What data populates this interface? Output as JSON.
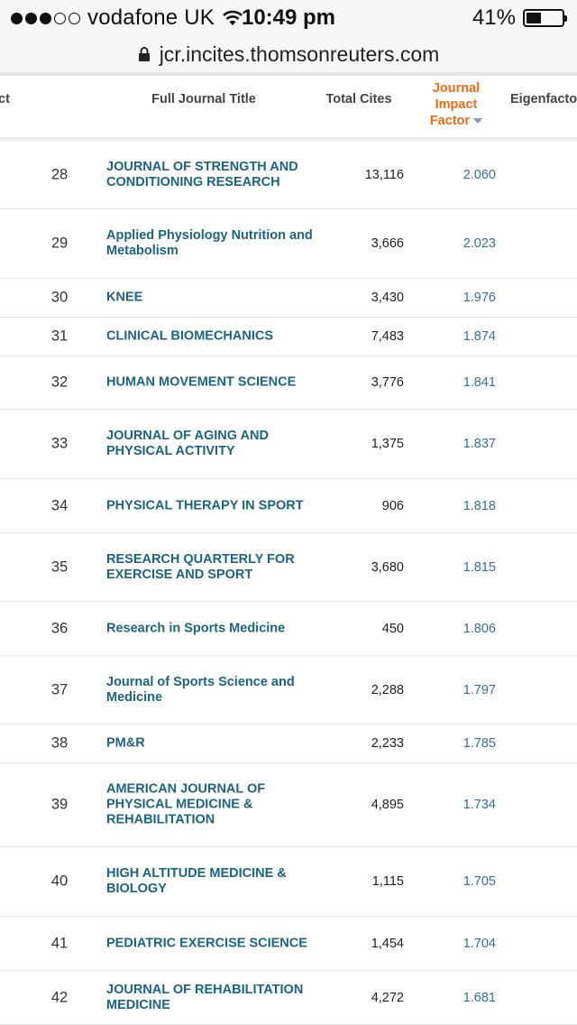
{
  "status_bar": {
    "carrier": "vodafone UK",
    "time": "10:49 pm",
    "battery": "41%",
    "battery_level": 0.41,
    "signal_bars": 3
  },
  "url_bar": {
    "url": "jcr.incites.thomsonreuters.com"
  },
  "table": {
    "headers": {
      "clipped_left": "ct",
      "title": "Full Journal Title",
      "cites": "Total Cites",
      "jif_line1": "Journal",
      "jif_line2": "Impact",
      "jif_line3": "Factor",
      "eigen": "Eigenfacto"
    },
    "rows": [
      {
        "rank": "28",
        "title": "JOURNAL OF STRENGTH AND CONDITIONING RESEARCH",
        "cites": "13,116",
        "jif": "2.060"
      },
      {
        "rank": "29",
        "title": "Applied Physiology Nutrition and Metabolism",
        "cites": "3,666",
        "jif": "2.023"
      },
      {
        "rank": "30",
        "title": "KNEE",
        "cites": "3,430",
        "jif": "1.976"
      },
      {
        "rank": "31",
        "title": "CLINICAL BIOMECHANICS",
        "cites": "7,483",
        "jif": "1.874"
      },
      {
        "rank": "32",
        "title": "HUMAN MOVEMENT SCIENCE",
        "cites": "3,776",
        "jif": "1.841"
      },
      {
        "rank": "33",
        "title": "JOURNAL OF AGING AND PHYSICAL ACTIVITY",
        "cites": "1,375",
        "jif": "1.837"
      },
      {
        "rank": "34",
        "title": "PHYSICAL THERAPY IN SPORT",
        "cites": "906",
        "jif": "1.818"
      },
      {
        "rank": "35",
        "title": "RESEARCH QUARTERLY FOR EXERCISE AND SPORT",
        "cites": "3,680",
        "jif": "1.815"
      },
      {
        "rank": "36",
        "title": "Research in Sports Medicine",
        "cites": "450",
        "jif": "1.806"
      },
      {
        "rank": "37",
        "title": "Journal of Sports Science and Medicine",
        "cites": "2,288",
        "jif": "1.797"
      },
      {
        "rank": "38",
        "title": "PM&R",
        "cites": "2,233",
        "jif": "1.785"
      },
      {
        "rank": "39",
        "title": "AMERICAN JOURNAL OF PHYSICAL MEDICINE & REHABILITATION",
        "cites": "4,895",
        "jif": "1.734"
      },
      {
        "rank": "40",
        "title": "HIGH ALTITUDE MEDICINE & BIOLOGY",
        "cites": "1,115",
        "jif": "1.705"
      },
      {
        "rank": "41",
        "title": "PEDIATRIC EXERCISE SCIENCE",
        "cites": "1,454",
        "jif": "1.704"
      },
      {
        "rank": "42",
        "title": "JOURNAL OF REHABILITATION MEDICINE",
        "cites": "4,272",
        "jif": "1.681"
      }
    ]
  }
}
